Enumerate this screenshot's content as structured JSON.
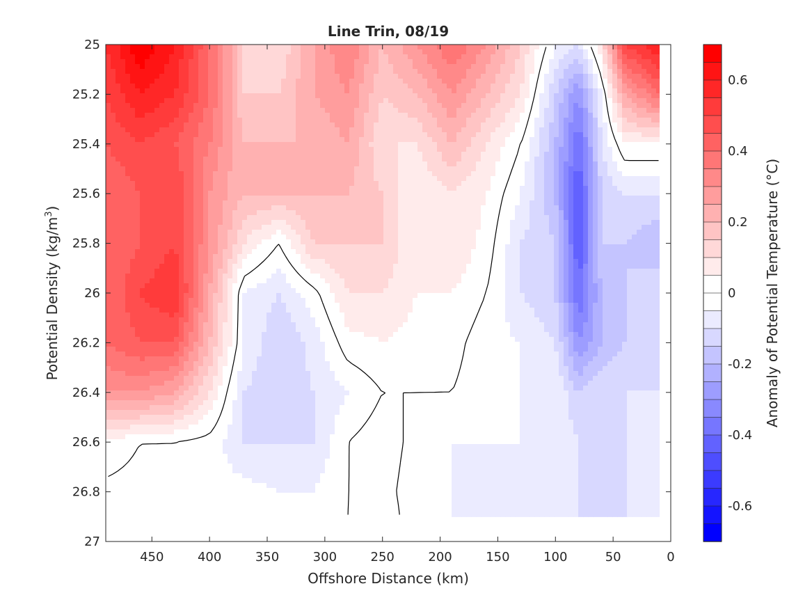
{
  "chart_data": {
    "type": "heatmap",
    "title": "Line Trin, 08/19",
    "xlabel": "Offshore Distance (km)",
    "ylabel_main": "Potential Density (kg/m",
    "ylabel_sup": "3",
    "ylabel_close": ")",
    "colorbar_label": "Anomaly of Potential Temperature (°C)",
    "xlim": [
      490,
      0
    ],
    "x_reversed": true,
    "ylim": [
      25,
      27
    ],
    "y_reversed": true,
    "xticks": [
      450,
      400,
      350,
      300,
      250,
      200,
      150,
      100,
      50,
      0
    ],
    "xtick_labels": [
      "450",
      "400",
      "350",
      "300",
      "250",
      "200",
      "150",
      "100",
      "50",
      "0"
    ],
    "yticks": [
      25,
      25.2,
      25.4,
      25.6,
      25.8,
      26,
      26.2,
      26.4,
      26.6,
      26.8,
      27
    ],
    "ytick_labels": [
      "25",
      "25.2",
      "25.4",
      "25.6",
      "25.8",
      "26",
      "26.2",
      "26.4",
      "26.6",
      "26.8",
      "27"
    ],
    "clim": [
      -0.7,
      0.7
    ],
    "colorbar_ticks": [
      0.6,
      0.4,
      0.2,
      0,
      -0.2,
      -0.4,
      -0.6
    ],
    "colorbar_tick_labels": [
      "0.6",
      "0.4",
      "0.2",
      "0",
      "-0.2",
      "-0.4",
      "-0.6"
    ],
    "contour_level_step": 0.05,
    "colormap": {
      "negative": "#0000ff",
      "zero": "#ffffff",
      "positive": "#ff0000"
    },
    "zero_contour_color": "#000000",
    "field_x": [
      490,
      460,
      430,
      400,
      370,
      340,
      310,
      280,
      250,
      220,
      190,
      160,
      130,
      100,
      80,
      60,
      40,
      10
    ],
    "field_y": [
      25,
      25.2,
      25.4,
      25.6,
      25.8,
      26,
      26.2,
      26.4,
      26.6,
      26.8,
      26.9
    ],
    "field_values": [
      [
        0.55,
        0.7,
        0.6,
        0.4,
        0.15,
        0.1,
        0.25,
        0.35,
        0.2,
        0.3,
        0.4,
        0.3,
        0.15,
        -0.05,
        -0.1,
        0.1,
        0.5,
        0.6
      ],
      [
        0.5,
        0.6,
        0.55,
        0.4,
        0.15,
        0.15,
        0.25,
        0.3,
        0.15,
        0.2,
        0.3,
        0.2,
        0.1,
        -0.15,
        -0.3,
        -0.05,
        0.25,
        0.4
      ],
      [
        0.45,
        0.5,
        0.45,
        0.35,
        0.2,
        0.2,
        0.2,
        0.25,
        0.1,
        0.1,
        0.2,
        0.1,
        0.0,
        -0.2,
        -0.4,
        -0.1,
        0.05,
        0.05
      ],
      [
        0.4,
        0.45,
        0.5,
        0.3,
        0.2,
        0.2,
        0.2,
        0.2,
        0.15,
        0.05,
        0.1,
        0.05,
        -0.05,
        -0.2,
        -0.45,
        -0.15,
        -0.1,
        -0.1
      ],
      [
        0.4,
        0.45,
        0.5,
        0.3,
        0.1,
        0.0,
        0.15,
        0.15,
        0.15,
        0.05,
        0.1,
        0.03,
        -0.1,
        -0.15,
        -0.45,
        -0.15,
        -0.15,
        -0.2
      ],
      [
        0.4,
        0.5,
        0.55,
        0.25,
        -0.05,
        -0.1,
        -0.02,
        0.1,
        0.1,
        0.05,
        0.05,
        0.0,
        -0.1,
        -0.15,
        -0.4,
        -0.2,
        -0.15,
        -0.1
      ],
      [
        0.4,
        0.45,
        0.45,
        0.2,
        -0.05,
        -0.15,
        -0.08,
        0.03,
        0.05,
        0.03,
        0.02,
        -0.03,
        -0.05,
        -0.1,
        -0.3,
        -0.2,
        -0.15,
        -0.1
      ],
      [
        0.3,
        0.3,
        0.25,
        0.1,
        -0.1,
        -0.15,
        -0.1,
        -0.05,
        0.0,
        0.0,
        0.0,
        -0.03,
        -0.05,
        -0.05,
        -0.15,
        -0.1,
        -0.1,
        -0.1
      ],
      [
        0.05,
        0.0,
        0.0,
        -0.02,
        -0.1,
        -0.1,
        -0.1,
        0.0,
        0.03,
        -0.02,
        -0.05,
        -0.05,
        -0.05,
        -0.05,
        -0.1,
        -0.1,
        -0.1,
        -0.05
      ],
      [
        -0.02,
        -0.03,
        -0.05,
        -0.03,
        -0.03,
        -0.05,
        -0.05,
        0.0,
        0.02,
        -0.03,
        -0.05,
        -0.05,
        -0.05,
        -0.05,
        -0.1,
        -0.1,
        -0.1,
        -0.05
      ],
      [
        -0.03,
        -0.03,
        -0.05,
        -0.03,
        -0.03,
        -0.05,
        -0.03,
        0.0,
        0.03,
        -0.03,
        -0.05,
        -0.05,
        -0.05,
        -0.05,
        -0.1,
        -0.1,
        -0.1,
        -0.05
      ]
    ]
  }
}
